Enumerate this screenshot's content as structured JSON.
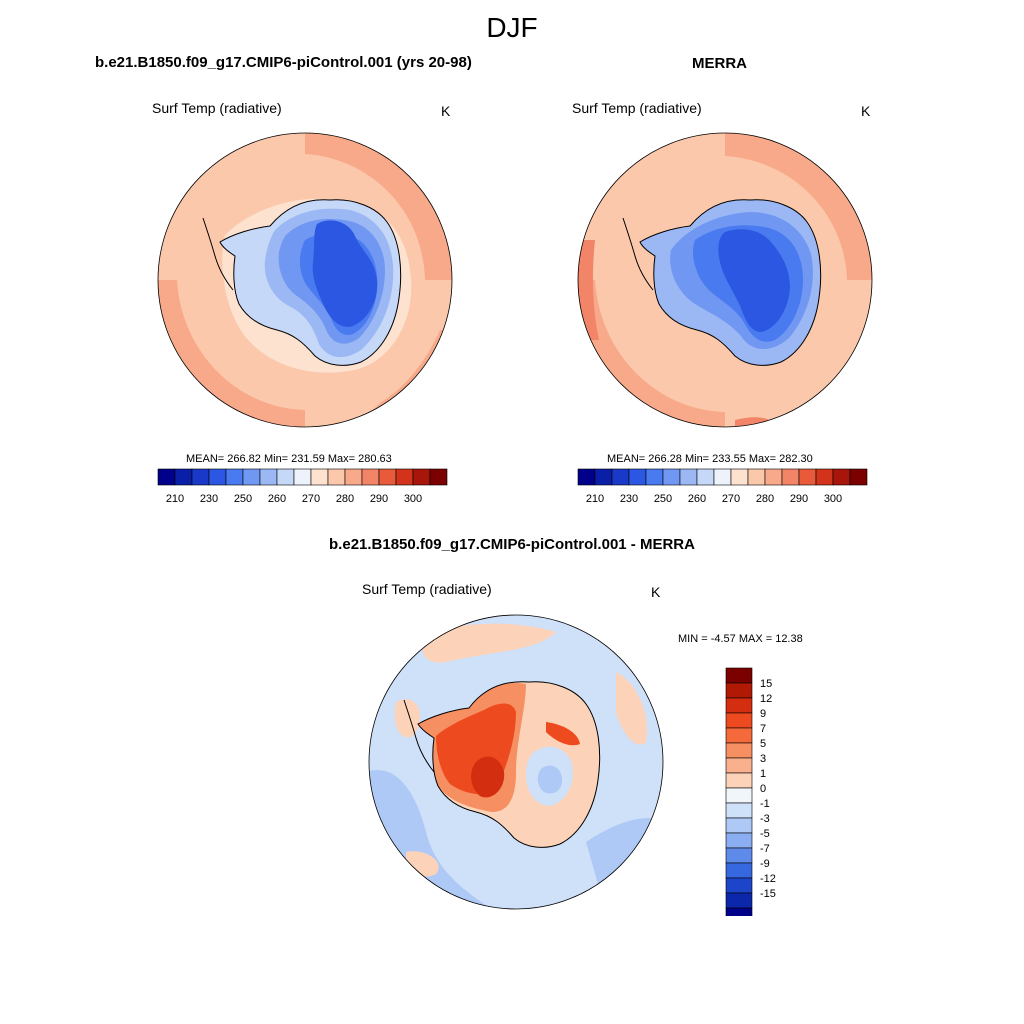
{
  "figure": {
    "title": "DJF"
  },
  "panels": {
    "model": {
      "title": "b.e21.B1850.f09_g17.CMIP6-piControl.001 (yrs 20-98)",
      "variable": "Surf Temp (radiative)",
      "units": "K",
      "stats": "MEAN= 266.82  Min= 231.59  Max= 280.63"
    },
    "obs": {
      "title": "MERRA",
      "variable": "Surf Temp (radiative)",
      "units": "K",
      "stats": "MEAN= 266.28  Min= 233.55  Max= 282.30"
    },
    "diff": {
      "title": "b.e21.B1850.f09_g17.CMIP6-piControl.001 - MERRA",
      "variable": "Surf Temp (radiative)",
      "units": "K",
      "stats": "MIN =  -4.57 MAX =  12.38"
    }
  },
  "chart_data": [
    {
      "type": "heatmap",
      "projection": "south polar stereographic",
      "title": "b.e21.B1850.f09_g17.CMIP6-piControl.001 (yrs 20-98)",
      "variable": "Surf Temp (radiative)",
      "units": "K",
      "mean": 266.82,
      "min": 231.59,
      "max": 280.63,
      "colorbar": {
        "orientation": "horizontal",
        "levels": [
          205,
          210,
          220,
          230,
          240,
          250,
          255,
          260,
          265,
          270,
          275,
          280,
          285,
          290,
          295,
          300
        ],
        "tick_labels": [
          "210",
          "230",
          "250",
          "260",
          "270",
          "280",
          "290",
          "300"
        ],
        "colors": [
          "#00008b",
          "#0a1fa8",
          "#1a39c8",
          "#2b57e2",
          "#4a7af0",
          "#7098f2",
          "#9bb8f5",
          "#c6d8f8",
          "#eef3fb",
          "#fde2cf",
          "#fcc8ab",
          "#f8a98a",
          "#f28467",
          "#e85a3a",
          "#d2331a",
          "#a8150a",
          "#7b0000"
        ]
      }
    },
    {
      "type": "heatmap",
      "projection": "south polar stereographic",
      "title": "MERRA",
      "variable": "Surf Temp (radiative)",
      "units": "K",
      "mean": 266.28,
      "min": 233.55,
      "max": 282.3,
      "colorbar": {
        "orientation": "horizontal",
        "levels": [
          205,
          210,
          220,
          230,
          240,
          250,
          255,
          260,
          265,
          270,
          275,
          280,
          285,
          290,
          295,
          300
        ],
        "tick_labels": [
          "210",
          "230",
          "250",
          "260",
          "270",
          "280",
          "290",
          "300"
        ],
        "colors": [
          "#00008b",
          "#0a1fa8",
          "#1a39c8",
          "#2b57e2",
          "#4a7af0",
          "#7098f2",
          "#9bb8f5",
          "#c6d8f8",
          "#eef3fb",
          "#fde2cf",
          "#fcc8ab",
          "#f8a98a",
          "#f28467",
          "#e85a3a",
          "#d2331a",
          "#a8150a",
          "#7b0000"
        ]
      }
    },
    {
      "type": "heatmap",
      "projection": "south polar stereographic",
      "title": "b.e21.B1850.f09_g17.CMIP6-piControl.001 - MERRA",
      "variable": "Surf Temp (radiative)",
      "units": "K",
      "min": -4.57,
      "max": 12.38,
      "colorbar": {
        "orientation": "vertical",
        "tick_labels": [
          "15",
          "12",
          "9",
          "7",
          "5",
          "3",
          "1",
          "0",
          "-1",
          "-3",
          "-5",
          "-7",
          "-9",
          "-12",
          "-15"
        ],
        "colors": [
          "#7b0000",
          "#b01a05",
          "#d42e10",
          "#ee4a1f",
          "#f46a3a",
          "#f68f62",
          "#f9b08d",
          "#fcd3b8",
          "#f1f6fb",
          "#cfe0f9",
          "#aec9f5",
          "#8aaef1",
          "#5e8bea",
          "#3668e0",
          "#1c45c9",
          "#0d27ab",
          "#000088"
        ]
      }
    }
  ]
}
